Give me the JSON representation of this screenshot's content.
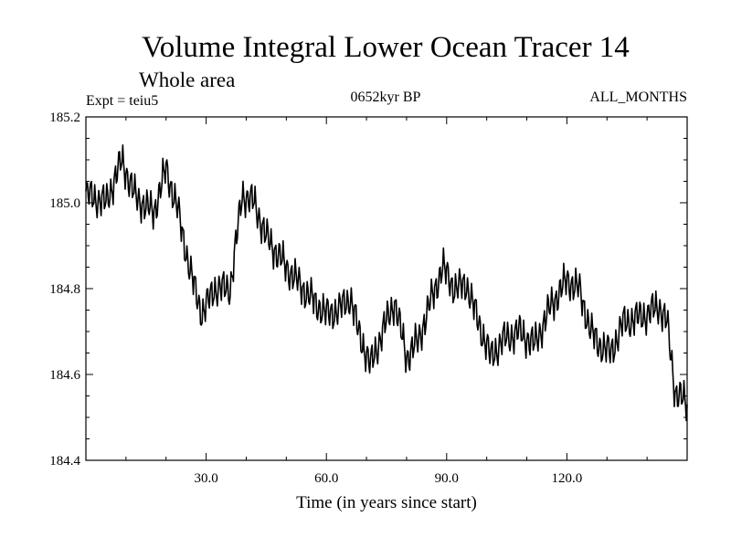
{
  "chart_data": {
    "type": "line",
    "title": "Volume Integral Lower Ocean Tracer 14",
    "subtitle": "Whole area",
    "expt_label": "Expt = teiu5",
    "period_label": "0652kyr BP",
    "months_label": "ALL_MONTHS",
    "xlabel": "Time (in years since start)",
    "ylabel": "",
    "xlim": [
      0,
      150
    ],
    "ylim": [
      184.4,
      185.2
    ],
    "x_ticks": [
      30,
      60,
      90,
      120
    ],
    "x_tick_labels": [
      "30.0",
      "60.0",
      "90.0",
      "120.0"
    ],
    "y_ticks": [
      184.4,
      184.6,
      184.8,
      185.0,
      185.2
    ],
    "y_tick_labels": [
      "184.4",
      "184.6",
      "184.8",
      "185.0",
      "185.2"
    ],
    "series": [
      {
        "name": "Tracer 14",
        "color": "#000000",
        "trend_x": [
          0,
          5,
          9,
          12,
          15,
          17,
          20,
          23,
          26,
          29,
          32,
          36,
          39,
          42,
          45,
          50,
          55,
          60,
          63,
          66,
          68,
          71,
          74,
          77,
          80,
          83,
          86,
          89,
          92,
          95,
          98,
          101,
          104,
          108,
          112,
          116,
          120,
          123,
          126,
          128,
          131,
          134,
          137,
          140,
          143,
          145,
          147,
          150
        ],
        "trend_y": [
          185.02,
          185.0,
          185.1,
          185.02,
          184.99,
          184.98,
          185.08,
          184.98,
          184.84,
          184.74,
          184.8,
          184.8,
          185.02,
          185.0,
          184.92,
          184.85,
          184.79,
          184.74,
          184.75,
          184.78,
          184.7,
          184.62,
          184.7,
          184.77,
          184.64,
          184.68,
          184.77,
          184.85,
          184.8,
          184.81,
          184.72,
          184.64,
          184.68,
          184.7,
          184.67,
          184.76,
          184.82,
          184.8,
          184.7,
          184.67,
          184.65,
          184.72,
          184.73,
          184.74,
          184.76,
          184.72,
          184.56,
          184.53
        ],
        "oscillation_amplitude": 0.03,
        "sample_interval_years": 0.2
      }
    ]
  }
}
